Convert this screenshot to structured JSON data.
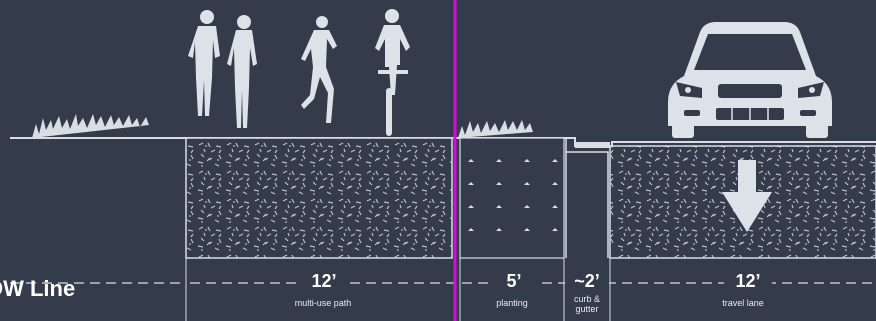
{
  "row_label": "OW Line",
  "segments": [
    {
      "dimension": "12’",
      "label": "multi-use path"
    },
    {
      "dimension": "5’",
      "label": "planting"
    },
    {
      "dimension": "~2’",
      "label": "curb & gutter"
    },
    {
      "dimension": "12’",
      "label": "travel lane"
    }
  ],
  "colors": {
    "background": "#343b4a",
    "ground": "#d9dde4",
    "row_line": "#d40fd4",
    "figures": "#dde1e8"
  },
  "icons": [
    "pedestrian-icon",
    "cyclist-icon",
    "car-icon",
    "down-arrow-icon",
    "grass-icon"
  ]
}
